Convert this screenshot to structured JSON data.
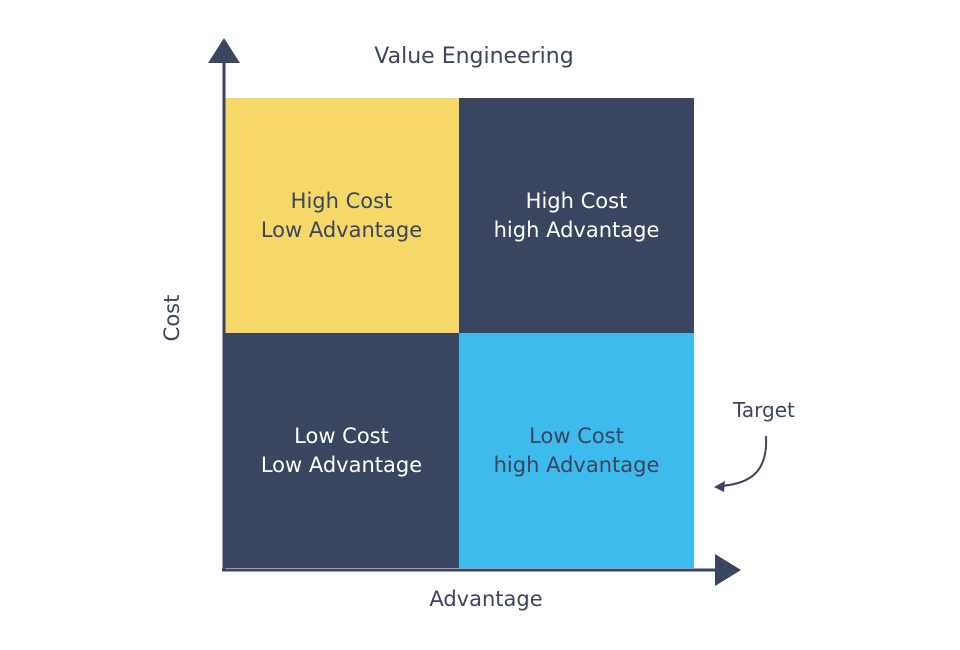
{
  "title": "Value Engineering",
  "y_axis_label": "Cost",
  "x_axis_label": "Advantage",
  "quadrants": {
    "top_left": {
      "line1": "High Cost",
      "line2": "Low Advantage",
      "color": "#f5d867"
    },
    "top_right": {
      "line1": "High Cost",
      "line2": "high Advantage",
      "color": "#3a4560"
    },
    "bottom_left": {
      "line1": "Low Cost",
      "line2": "Low Advantage",
      "color": "#3a4560"
    },
    "bottom_right": {
      "line1": "Low Cost",
      "line2": "high Advantage",
      "color": "#3dbbec"
    }
  },
  "annotation": {
    "label": "Target",
    "points_to": "bottom_right"
  },
  "colors": {
    "axis": "#3a4560",
    "text": "#3a4560"
  }
}
